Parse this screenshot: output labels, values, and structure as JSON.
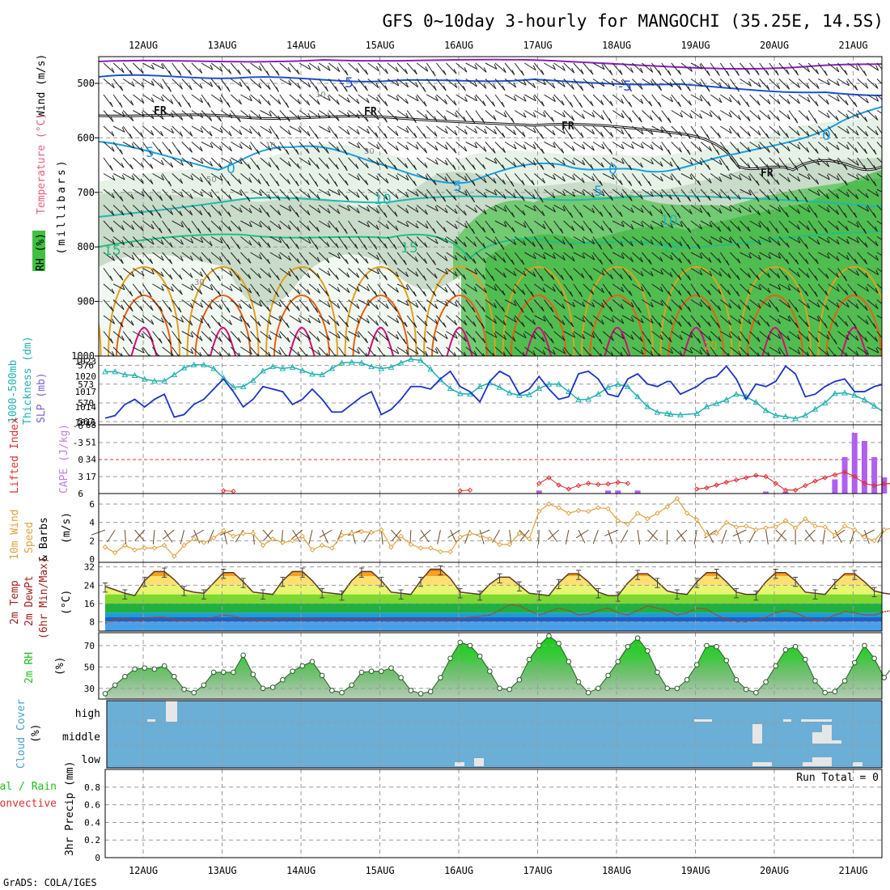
{
  "title": "GFS 0~10day 3-hourly for MANGOCHI (35.25E, 14.5S)",
  "credit": "GrADS: COLA/IGES",
  "dates": [
    "12AUG",
    "13AUG",
    "14AUG",
    "15AUG",
    "16AUG",
    "17AUG",
    "18AUG",
    "19AUG",
    "20AUG",
    "21AUG"
  ],
  "colors": {
    "temp_warm": "#e0a020",
    "temp_hot": "#e86010",
    "temp_very_hot": "#d0107a",
    "temp_cool": "#20b0e0",
    "temp_cold": "#2050d0",
    "rh_green": "#40c040",
    "thickness": "#20b0b0",
    "slp": "#1a34c8",
    "cape": "#b060f0",
    "lifted": "#e03030",
    "wind": "#e0a040",
    "rh2m": "#20c020",
    "cloud": "#6baed6"
  },
  "panels": {
    "upper": {
      "ylabel": "(millibars)",
      "legend_wind": "Wind (m/s)",
      "legend_temp": "Temperature (°C)",
      "legend_rh": "RH (%)",
      "yticks": [
        "500",
        "600",
        "700",
        "800",
        "900",
        "1000"
      ],
      "contour_labels": {
        "m5a": "-5",
        "m5b": "-5",
        "fr1": "FR",
        "fr2": "FR",
        "fr3": "FR",
        "fr4": "FR",
        "c5a": "5",
        "c0a": "0",
        "c5b": "5",
        "c0b": "0",
        "c5c": "5",
        "c0c": "0",
        "c10a": "10",
        "c10b": "10",
        "c15a": "15",
        "c15b": "15",
        "c15c": "15",
        "rh10": "10",
        "rh10b": "10",
        "rh30": "30",
        "rh50": "50",
        "rh30b": "30",
        "rh20": "20"
      }
    },
    "thick": {
      "label1": "1000-500mb",
      "label2": "Thickness (dm)",
      "label3": "SLP (mb)",
      "left_ticks": [
        "576",
        "573",
        "570",
        "567"
      ],
      "right_ticks": [
        "1023",
        "1020",
        "1017",
        "1014",
        "1011"
      ]
    },
    "cape": {
      "label1": "Lifted Index",
      "label2": "CAPE (J/kg)",
      "left_ticks": [
        "-6",
        "-3",
        "0",
        "3",
        "6"
      ],
      "right_ticks": [
        "68",
        "51",
        "34",
        "17"
      ]
    },
    "wind10": {
      "label1": "10m Wind",
      "label2": "Speed",
      "label3": "& Barbs",
      "units": "(m/s)",
      "yticks": [
        "6",
        "4",
        "2",
        "0"
      ]
    },
    "temp2m": {
      "label1": "2m Temp",
      "label2": "2m DewPt",
      "label3": "(6hr Min/Max)",
      "units": "(°C)",
      "yticks": [
        "32",
        "24",
        "16",
        "8"
      ]
    },
    "rh2m": {
      "label1": "2m RH",
      "units": "(%)",
      "yticks": [
        "70",
        "50",
        "30"
      ]
    },
    "cloud": {
      "label1": "Cloud Cover",
      "units": "(%)",
      "levels": [
        "high",
        "middle",
        "low"
      ]
    },
    "precip": {
      "label1": "Total / Rain",
      "label2": "Convective",
      "label3": "3hr Precip (mm)",
      "yticks": [
        "0.8",
        "0.6",
        "0.4",
        "0.2",
        "0"
      ],
      "run_total": "Run Total = 0"
    }
  },
  "chart_data": [
    {
      "type": "line",
      "title": "1000-500mb Thickness (dm) and SLP (mb)",
      "x": [
        0,
        3,
        6,
        9,
        12,
        15,
        18,
        21,
        24,
        27,
        30,
        33,
        36,
        39,
        42,
        45,
        48,
        51,
        54,
        57,
        60,
        63,
        66,
        69,
        72,
        75,
        78,
        81,
        84,
        87,
        90,
        93,
        96,
        99,
        102,
        105,
        108,
        111,
        114,
        117,
        120,
        123,
        126,
        129,
        132,
        135,
        138,
        141,
        144,
        147,
        150,
        153,
        156,
        159,
        162,
        165,
        168,
        171,
        172,
        175,
        180,
        183,
        186,
        189,
        192,
        195,
        198,
        201,
        204,
        207,
        210,
        213,
        216,
        219,
        222,
        225,
        228,
        231,
        234,
        237,
        240
      ],
      "series": [
        {
          "name": "Thickness (dm)",
          "values": [
            575.0,
            575.0,
            574.5,
            574.4,
            573.8,
            573.5,
            573.5,
            574.5,
            575.6,
            576.1,
            576.1,
            575.5,
            574.0,
            572.5,
            572.6,
            573.6,
            575.1,
            575.8,
            575.5,
            575.7,
            575.2,
            574.6,
            574.5,
            575.5,
            576.4,
            576.5,
            576.4,
            575.8,
            575.5,
            575.7,
            576.4,
            577.0,
            576.8,
            575.4,
            573.7,
            572.3,
            571.5,
            571.4,
            572.6,
            573.2,
            572.5,
            571.6,
            571.2,
            571.3,
            572.3,
            573.0,
            573.0,
            571.8,
            570.5,
            570.6,
            571.4,
            572.5,
            573.0,
            572.6,
            571.0,
            569.4,
            568.5,
            568.3,
            568.2,
            568.1,
            568.3,
            569.4,
            569.9,
            570.5,
            571.4,
            571.0,
            570.1,
            568.8,
            568.0,
            567.8,
            567.5,
            568.0,
            569.0,
            570.0,
            571.5,
            571.6,
            571.2,
            570.5,
            569.5,
            568.5,
            568.6
          ]
        },
        {
          "name": "SLP (mb)",
          "values": [
            1011.8,
            1012.3,
            1014.5,
            1015.5,
            1014.0,
            1015.5,
            1016.5,
            1012.0,
            1012.5,
            1014.5,
            1015.5,
            1017.5,
            1019.5,
            1017.0,
            1014.0,
            1015.5,
            1018.0,
            1017.5,
            1017.0,
            1014.5,
            1015.5,
            1017.5,
            1015.5,
            1013.0,
            1013.0,
            1014.5,
            1016.0,
            1017.0,
            1012.5,
            1013.5,
            1015.5,
            1018.0,
            1018.0,
            1017.5,
            1019.5,
            1021.0,
            1018.0,
            1017.0,
            1015.0,
            1019.0,
            1021.0,
            1020.0,
            1016.5,
            1017.5,
            1020.0,
            1017.5,
            1015.5,
            1016.0,
            1020.5,
            1021.0,
            1019.5,
            1016.5,
            1016.0,
            1019.5,
            1020.5,
            1018.5,
            1018.0,
            1019.0,
            1019.0,
            1016.5,
            1018.0,
            1019.5,
            1020.0,
            1022.0,
            1019.5,
            1015.5,
            1018.5,
            1018.0,
            1019.0,
            1022.0,
            1020.5,
            1016.0,
            1016.5,
            1018.0,
            1019.0,
            1019.5,
            1017.0,
            1017.0,
            1018.0,
            1018.5,
            1018.5
          ]
        }
      ],
      "ylim_thickness": [
        566.5,
        577.5
      ],
      "ylim_slp": [
        1010.5,
        1024.0
      ]
    },
    {
      "type": "bar",
      "title": "Lifted Index / CAPE (J/kg)",
      "x_cape": [
        132,
        153,
        156,
        162,
        201,
        207,
        222,
        225,
        228,
        231,
        234,
        237,
        246,
        252,
        255,
        258
      ],
      "series": [
        {
          "name": "CAPE (J/kg)",
          "values": [
            3,
            3,
            3,
            3,
            2,
            2,
            14,
            36,
            60,
            52,
            36,
            16,
            6,
            10,
            22,
            6
          ]
        }
      ],
      "lifted_index": {
        "x": [
          36,
          39,
          108,
          111,
          132,
          135,
          138,
          141,
          144,
          147,
          150,
          153,
          156,
          159,
          180,
          183,
          186,
          189,
          192,
          195,
          198,
          201,
          204,
          207,
          210,
          213,
          216,
          219,
          222,
          225,
          228,
          231,
          234,
          237,
          240
        ],
        "values": [
          5.5,
          5.6,
          5.5,
          5.4,
          4.2,
          3.2,
          4.5,
          5.2,
          4.6,
          4.2,
          4.4,
          4.3,
          4.0,
          4.2,
          5.2,
          5.0,
          4.5,
          4.0,
          3.6,
          3.2,
          2.8,
          3.0,
          4.2,
          5.4,
          5.4,
          4.6,
          3.8,
          3.2,
          2.7,
          2.2,
          3.0,
          4.2,
          4.6,
          4.3,
          4.2
        ]
      },
      "ylim_li": [
        6,
        -6
      ],
      "ylim_cape": [
        0,
        68
      ]
    },
    {
      "type": "line",
      "title": "10m Wind Speed (m/s)",
      "x": [
        0,
        3,
        6,
        9,
        12,
        15,
        18,
        21,
        24,
        27,
        30,
        33,
        36,
        39,
        42,
        45,
        48,
        51,
        54,
        57,
        60,
        63,
        66,
        69,
        72,
        75,
        78,
        81,
        84,
        87,
        90,
        93,
        96,
        99,
        102,
        105,
        108,
        111,
        114,
        117,
        120,
        123,
        126,
        129,
        132,
        135,
        138,
        141,
        144,
        147,
        150,
        153,
        156,
        159,
        162,
        165,
        168,
        171,
        174,
        177,
        180,
        183,
        186,
        189,
        192,
        195,
        198,
        201,
        204,
        207,
        210,
        213,
        216,
        219,
        222,
        225,
        228,
        231,
        234,
        237,
        240
      ],
      "series": [
        {
          "name": "Wind Speed",
          "values": [
            1.3,
            0.7,
            1.5,
            1.0,
            1.2,
            1.2,
            1.5,
            0.3,
            1.5,
            2.2,
            1.8,
            2.3,
            3.1,
            2.5,
            2.8,
            2.8,
            1.5,
            2.2,
            1.8,
            2.0,
            2.5,
            1.0,
            1.5,
            1.2,
            2.6,
            2.8,
            3.0,
            2.9,
            3.2,
            1.3,
            2.5,
            1.6,
            1.2,
            1.2,
            0.8,
            0.8,
            2.4,
            2.8,
            2.6,
            2.2,
            1.6,
            1.6,
            2.8,
            2.2,
            5.2,
            6.0,
            5.6,
            5.0,
            5.3,
            5.2,
            5.6,
            5.5,
            4.2,
            3.8,
            5.0,
            4.4,
            5.0,
            5.7,
            6.6,
            5.0,
            4.3,
            2.6,
            2.8,
            4.0,
            3.5,
            3.6,
            3.2,
            3.4,
            3.5,
            4.2,
            3.4,
            4.4,
            3.6,
            3.5,
            2.6,
            3.6,
            3.2,
            2.4,
            2.0,
            3.2,
            3.4
          ]
        }
      ],
      "ylim": [
        0,
        7
      ]
    },
    {
      "type": "area",
      "title": "2m Temp / 2m DewPt (°C)",
      "x": [
        0,
        3,
        6,
        9,
        12,
        15,
        18,
        21,
        24,
        27,
        30,
        33,
        36,
        39,
        42,
        45,
        48,
        51,
        54,
        57,
        60,
        63,
        66,
        69,
        72,
        75,
        78,
        81,
        84,
        87,
        90,
        93,
        96,
        99,
        102,
        105,
        108,
        111,
        114,
        117,
        120,
        123,
        126,
        129,
        132,
        135,
        138,
        141,
        144,
        147,
        150,
        153,
        156,
        159,
        162,
        165,
        168,
        171,
        174,
        177,
        180,
        183,
        186,
        189,
        192,
        195,
        198,
        201,
        204,
        207,
        210,
        213,
        216,
        219,
        222,
        225,
        228,
        231,
        234,
        237,
        240
      ],
      "series": [
        {
          "name": "2m Temp",
          "values": [
            23.5,
            22,
            20.5,
            19.5,
            26,
            30,
            30,
            26.5,
            22,
            21,
            20.5,
            25,
            29.5,
            29.5,
            25.5,
            21,
            20.5,
            20,
            26,
            30,
            30,
            26,
            21,
            20.5,
            20,
            26,
            30,
            30,
            26,
            21,
            20.5,
            20,
            26,
            31,
            31,
            27,
            21,
            20.5,
            20,
            24.5,
            27.5,
            27.5,
            24,
            20.5,
            20,
            19.5,
            25,
            29,
            29,
            25.5,
            21,
            19.5,
            19.5,
            25,
            29,
            29,
            25.5,
            21.5,
            20.5,
            20,
            25.5,
            29.5,
            29.5,
            25.5,
            21,
            20,
            20,
            25.5,
            29.5,
            29.5,
            26,
            21,
            20.5,
            20,
            25,
            29,
            29,
            25.5,
            21.5,
            20.5,
            20
          ]
        },
        {
          "name": "2m DewPt",
          "values": [
            7.5,
            9,
            9.5,
            8.5,
            9.5,
            10,
            10,
            9,
            8.5,
            9,
            9,
            10,
            11,
            10.5,
            9.5,
            9,
            8.5,
            9,
            9.5,
            9.5,
            9.5,
            9.5,
            9,
            9,
            9,
            9.5,
            9.5,
            9.5,
            9,
            9,
            9,
            9,
            9,
            9,
            9,
            9,
            9.5,
            10,
            10.5,
            11,
            13,
            15.5,
            15,
            13,
            11,
            12.5,
            14,
            13,
            11,
            11.5,
            13,
            14,
            12,
            11,
            13,
            15,
            14,
            13,
            11,
            12,
            14,
            13.5,
            11,
            9,
            8,
            8,
            8.5,
            10,
            12,
            13,
            12,
            10,
            8.5,
            9,
            11,
            12.5,
            12,
            11,
            11,
            12.5,
            13
          ]
        }
      ],
      "ylim": [
        4,
        34
      ]
    },
    {
      "type": "area",
      "title": "2m RH (%)",
      "x": [
        0,
        3,
        6,
        9,
        12,
        15,
        18,
        21,
        24,
        27,
        30,
        33,
        36,
        39,
        42,
        45,
        48,
        51,
        54,
        57,
        60,
        63,
        66,
        69,
        72,
        75,
        78,
        81,
        84,
        87,
        90,
        93,
        96,
        99,
        102,
        105,
        108,
        111,
        114,
        117,
        120,
        123,
        126,
        129,
        132,
        135,
        138,
        141,
        144,
        147,
        150,
        153,
        156,
        159,
        162,
        165,
        168,
        171,
        174,
        177,
        180,
        183,
        186,
        189,
        192,
        195,
        198,
        201,
        204,
        207,
        210,
        213,
        216,
        219,
        222,
        225,
        228,
        231,
        234,
        237,
        240
      ],
      "series": [
        {
          "name": "2m RH",
          "values": [
            25,
            33,
            41,
            48,
            49,
            48,
            51,
            41,
            29,
            26,
            33,
            45,
            45,
            45,
            61,
            43,
            30,
            31,
            38,
            46,
            51,
            55,
            42,
            28,
            26,
            33,
            45,
            46,
            46,
            49,
            40,
            28,
            25,
            27,
            40,
            58,
            73,
            70,
            60,
            46,
            30,
            29,
            38,
            57,
            70,
            79,
            72,
            55,
            36,
            26,
            30,
            42,
            55,
            69,
            77,
            65,
            45,
            30,
            30,
            38,
            52,
            70,
            69,
            56,
            38,
            29,
            26,
            36,
            51,
            66,
            69,
            57,
            37,
            26,
            27,
            37,
            54,
            70,
            58,
            40,
            52
          ]
        }
      ],
      "ylim": [
        20,
        82
      ]
    },
    {
      "type": "bar",
      "title": "Cloud Cover (%)",
      "levels": [
        "high",
        "middle",
        "low"
      ],
      "note": "mostly clear; small amounts of high/middle/low cloud near 12AUG, 16AUG, 19-21AUG"
    },
    {
      "type": "bar",
      "title": "3hr Precip (mm)",
      "values": [],
      "ylim": [
        0,
        0.9
      ],
      "run_total": 0
    }
  ]
}
